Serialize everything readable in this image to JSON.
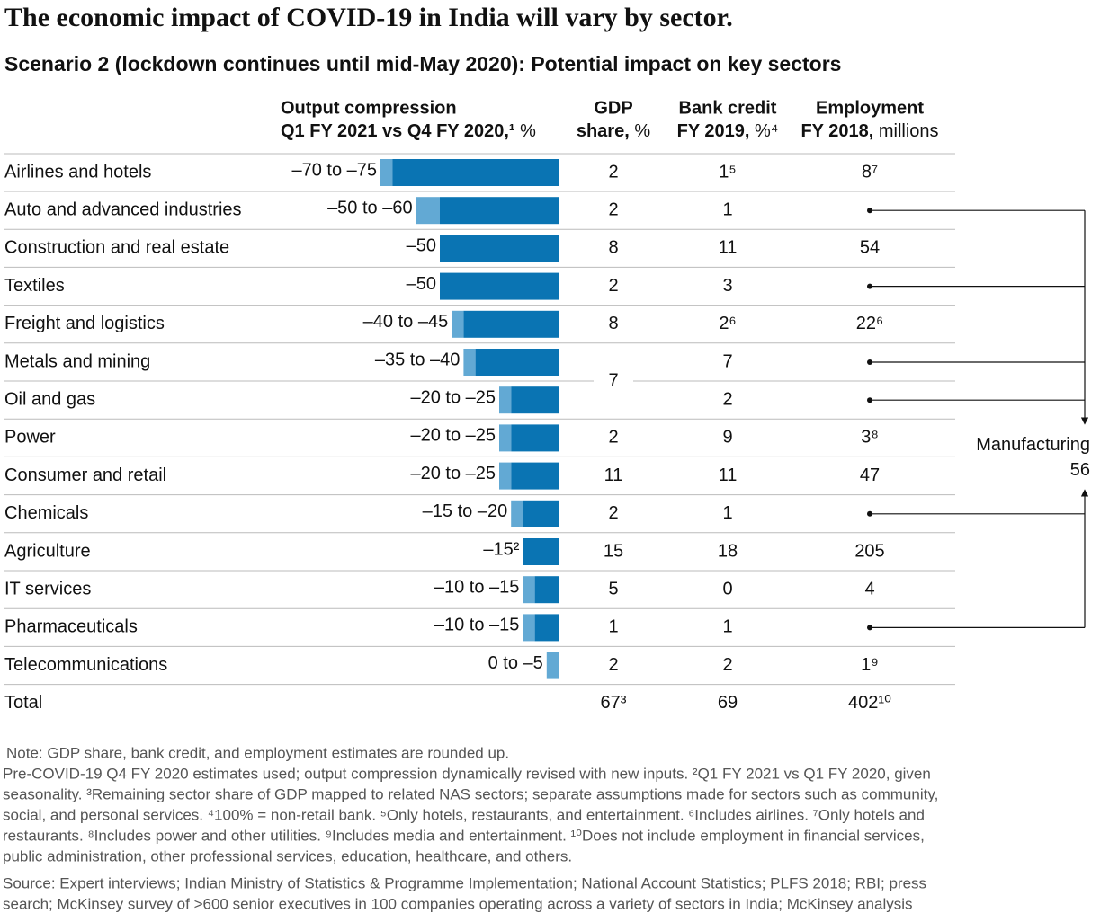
{
  "title": "The economic impact of COVID-19 in India will vary by sector.",
  "subtitle": "Scenario 2 (lockdown continues until mid-May 2020): Potential impact on key sectors",
  "headers": {
    "compression": {
      "line1": "Output compression",
      "line2_bold": "Q1 FY 2021 vs Q4 FY 2020,¹",
      "line2": "%"
    },
    "gdp": {
      "line1": "GDP",
      "line2_bold": "share,",
      "line2": "%"
    },
    "credit": {
      "line1": "Bank credit",
      "line2_bold": "FY 2019,",
      "line2": "%⁴"
    },
    "employment": {
      "line1": "Employment",
      "line2_bold": "FY 2018,",
      "line2": "millions"
    }
  },
  "xlim": [
    -75,
    0
  ],
  "colors": {
    "main": "#0a74b3",
    "range": "#62a9d4"
  },
  "rows": [
    {
      "sector": "Airlines and hotels",
      "compression": {
        "label": "–70 to –75",
        "values": [
          -70,
          -75
        ]
      },
      "gdp": "2",
      "credit": "1⁵",
      "employment": "8⁷"
    },
    {
      "sector": "Auto and advanced industries",
      "compression": {
        "label": "–50 to –60",
        "values": [
          -50,
          -60
        ]
      },
      "gdp": "2",
      "credit": "1",
      "employment": null
    },
    {
      "sector": "Construction and real estate",
      "compression": {
        "label": "–50",
        "values": [
          -50
        ]
      },
      "gdp": "8",
      "credit": "11",
      "employment": "54"
    },
    {
      "sector": "Textiles",
      "compression": {
        "label": "–50",
        "values": [
          -50
        ]
      },
      "gdp": "2",
      "credit": "3",
      "employment": null
    },
    {
      "sector": "Freight and logistics",
      "compression": {
        "label": "–40 to –45",
        "values": [
          -40,
          -45
        ]
      },
      "gdp": "8",
      "credit": "2⁶",
      "employment": "22⁶"
    },
    {
      "sector": "Metals and mining",
      "compression": {
        "label": "–35 to –40",
        "values": [
          -35,
          -40
        ]
      },
      "gdp": null,
      "credit": "7",
      "employment": null
    },
    {
      "sector": "Oil and gas",
      "compression": {
        "label": "–20 to –25",
        "values": [
          -20,
          -25
        ]
      },
      "gdp": null,
      "credit": "2",
      "employment": null
    },
    {
      "sector": "Power",
      "compression": {
        "label": "–20 to –25",
        "values": [
          -20,
          -25
        ]
      },
      "gdp": "2",
      "credit": "9",
      "employment": "3⁸"
    },
    {
      "sector": "Consumer and retail",
      "compression": {
        "label": "–20 to –25",
        "values": [
          -20,
          -25
        ]
      },
      "gdp": "11",
      "credit": "11",
      "employment": "47"
    },
    {
      "sector": "Chemicals",
      "compression": {
        "label": "–15 to –20",
        "values": [
          -15,
          -20
        ]
      },
      "gdp": "2",
      "credit": "1",
      "employment": null
    },
    {
      "sector": "Agriculture",
      "compression": {
        "label": "–15²",
        "values": [
          -15
        ]
      },
      "gdp": "15",
      "credit": "18",
      "employment": "205"
    },
    {
      "sector": "IT services",
      "compression": {
        "label": "–10 to –15",
        "values": [
          -10,
          -15
        ]
      },
      "gdp": "5",
      "credit": "0",
      "employment": "4"
    },
    {
      "sector": "Pharmaceuticals",
      "compression": {
        "label": "–10 to –15",
        "values": [
          -10,
          -15
        ]
      },
      "gdp": "1",
      "credit": "1",
      "employment": null
    },
    {
      "sector": "Telecommunications",
      "compression": {
        "label": "0 to –5",
        "values": [
          0,
          -5
        ]
      },
      "gdp": "2",
      "credit": "2",
      "employment": "1⁹"
    }
  ],
  "gdp_merged": {
    "rows": [
      5,
      6
    ],
    "value": "7"
  },
  "total": {
    "label": "Total",
    "gdp": "67³",
    "credit": "69",
    "employment": "402¹⁰"
  },
  "manufacturing": {
    "label": "Manufacturing",
    "value": "56",
    "rows": [
      1,
      3,
      5,
      6,
      9,
      12
    ]
  },
  "notes": [
    "Note: GDP share, bank credit, and employment estimates are rounded up.",
    "Pre-COVID-19 Q4 FY 2020 estimates used; output compression dynamically revised with new inputs. ²Q1 FY 2021 vs Q1 FY 2020, given",
    "seasonality. ³Remaining sector share of GDP mapped to related NAS sectors; separate assumptions made for sectors such as community,",
    "social, and personal services. ⁴100% = non-retail bank. ⁵Only hotels, restaurants, and entertainment. ⁶Includes airlines. ⁷Only hotels and",
    "restaurants. ⁸Includes power and other utilities. ⁹Includes media and entertainment. ¹⁰Does not include employment in financial services,",
    "public administration, other professional services, education, healthcare, and others."
  ],
  "source": [
    "Source: Expert interviews; Indian Ministry of Statistics & Programme Implementation; National Account Statistics; PLFS 2018; RBI; press",
    "search; McKinsey survey of >600 senior executives in 100 companies operating across a variety of sectors in India; McKinsey analysis"
  ]
}
